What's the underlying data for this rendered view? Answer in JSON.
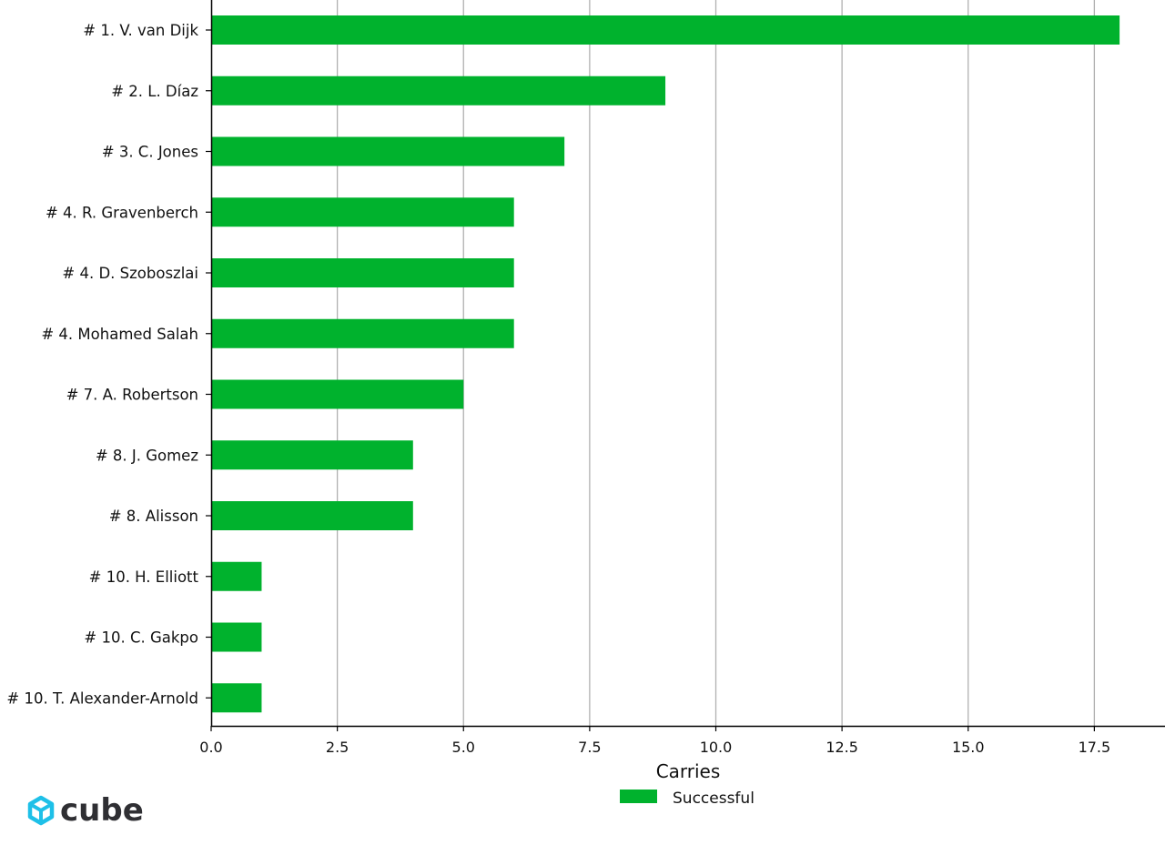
{
  "chart_data": {
    "type": "bar",
    "orientation": "horizontal",
    "categories": [
      "# 1.  V. van Dijk",
      "# 2.  L. Díaz",
      "# 3.  C. Jones",
      "# 4.  R. Gravenberch",
      "# 4.  D. Szoboszlai",
      "# 4.  Mohamed Salah",
      "# 7.  A. Robertson",
      "# 8.  J. Gomez",
      "# 8.  Alisson",
      "# 10.  H. Elliott",
      "# 10.  C. Gakpo",
      "# 10.  T. Alexander-Arnold"
    ],
    "series": [
      {
        "name": "Successful",
        "color": "#00b22d",
        "values": [
          18,
          9,
          7,
          6,
          6,
          6,
          5,
          4,
          4,
          1,
          1,
          1
        ]
      }
    ],
    "xlabel": "Carries",
    "ylabel": "",
    "xlim": [
      0,
      18.9
    ],
    "xticks": [
      "0.0",
      "2.5",
      "5.0",
      "7.5",
      "10.0",
      "12.5",
      "15.0",
      "17.5"
    ],
    "grid": "vertical",
    "legend": "bottom-center"
  },
  "branding": {
    "logo_text": "cube",
    "logo_icon": "cube-logo-icon",
    "logo_color": "#1ec0e8"
  }
}
